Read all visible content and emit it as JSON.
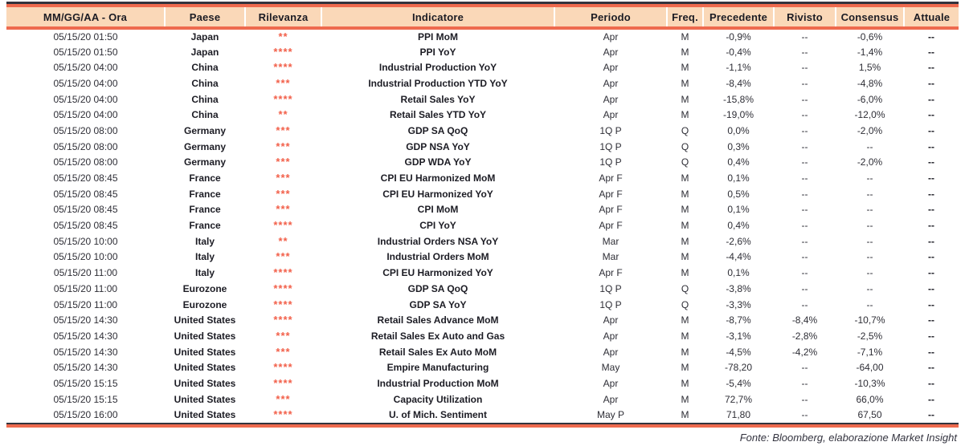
{
  "table": {
    "columns": [
      {
        "key": "datetime",
        "label": "MM/GG/AA - Ora"
      },
      {
        "key": "country",
        "label": "Paese"
      },
      {
        "key": "relevance",
        "label": "Rilevanza"
      },
      {
        "key": "indicator",
        "label": "Indicatore"
      },
      {
        "key": "period",
        "label": "Periodo"
      },
      {
        "key": "frequency",
        "label": "Freq."
      },
      {
        "key": "previous",
        "label": "Precedente"
      },
      {
        "key": "revised",
        "label": "Rivisto"
      },
      {
        "key": "consensus",
        "label": "Consensus"
      },
      {
        "key": "actual",
        "label": "Attuale"
      }
    ],
    "rows": [
      {
        "datetime": "05/15/20 01:50",
        "country": "Japan",
        "relevance": "**",
        "indicator": "PPI MoM",
        "period": "Apr",
        "frequency": "M",
        "previous": "-0,9%",
        "revised": "--",
        "consensus": "-0,6%",
        "actual": "--"
      },
      {
        "datetime": "05/15/20 01:50",
        "country": "Japan",
        "relevance": "****",
        "indicator": "PPI YoY",
        "period": "Apr",
        "frequency": "M",
        "previous": "-0,4%",
        "revised": "--",
        "consensus": "-1,4%",
        "actual": "--"
      },
      {
        "datetime": "05/15/20 04:00",
        "country": "China",
        "relevance": "****",
        "indicator": "Industrial Production YoY",
        "period": "Apr",
        "frequency": "M",
        "previous": "-1,1%",
        "revised": "--",
        "consensus": "1,5%",
        "actual": "--"
      },
      {
        "datetime": "05/15/20 04:00",
        "country": "China",
        "relevance": "***",
        "indicator": "Industrial Production YTD YoY",
        "period": "Apr",
        "frequency": "M",
        "previous": "-8,4%",
        "revised": "--",
        "consensus": "-4,8%",
        "actual": "--"
      },
      {
        "datetime": "05/15/20 04:00",
        "country": "China",
        "relevance": "****",
        "indicator": "Retail Sales YoY",
        "period": "Apr",
        "frequency": "M",
        "previous": "-15,8%",
        "revised": "--",
        "consensus": "-6,0%",
        "actual": "--"
      },
      {
        "datetime": "05/15/20 04:00",
        "country": "China",
        "relevance": "**",
        "indicator": "Retail Sales YTD YoY",
        "period": "Apr",
        "frequency": "M",
        "previous": "-19,0%",
        "revised": "--",
        "consensus": "-12,0%",
        "actual": "--"
      },
      {
        "datetime": "05/15/20 08:00",
        "country": "Germany",
        "relevance": "***",
        "indicator": "GDP SA QoQ",
        "period": "1Q P",
        "frequency": "Q",
        "previous": "0,0%",
        "revised": "--",
        "consensus": "-2,0%",
        "actual": "--"
      },
      {
        "datetime": "05/15/20 08:00",
        "country": "Germany",
        "relevance": "***",
        "indicator": "GDP NSA YoY",
        "period": "1Q P",
        "frequency": "Q",
        "previous": "0,3%",
        "revised": "--",
        "consensus": "--",
        "actual": "--"
      },
      {
        "datetime": "05/15/20 08:00",
        "country": "Germany",
        "relevance": "***",
        "indicator": "GDP WDA YoY",
        "period": "1Q P",
        "frequency": "Q",
        "previous": "0,4%",
        "revised": "--",
        "consensus": "-2,0%",
        "actual": "--"
      },
      {
        "datetime": "05/15/20 08:45",
        "country": "France",
        "relevance": "***",
        "indicator": "CPI EU Harmonized MoM",
        "period": "Apr F",
        "frequency": "M",
        "previous": "0,1%",
        "revised": "--",
        "consensus": "--",
        "actual": "--"
      },
      {
        "datetime": "05/15/20 08:45",
        "country": "France",
        "relevance": "***",
        "indicator": "CPI EU Harmonized YoY",
        "period": "Apr F",
        "frequency": "M",
        "previous": "0,5%",
        "revised": "--",
        "consensus": "--",
        "actual": "--"
      },
      {
        "datetime": "05/15/20 08:45",
        "country": "France",
        "relevance": "***",
        "indicator": "CPI MoM",
        "period": "Apr F",
        "frequency": "M",
        "previous": "0,1%",
        "revised": "--",
        "consensus": "--",
        "actual": "--"
      },
      {
        "datetime": "05/15/20 08:45",
        "country": "France",
        "relevance": "****",
        "indicator": "CPI YoY",
        "period": "Apr F",
        "frequency": "M",
        "previous": "0,4%",
        "revised": "--",
        "consensus": "--",
        "actual": "--"
      },
      {
        "datetime": "05/15/20 10:00",
        "country": "Italy",
        "relevance": "**",
        "indicator": "Industrial Orders NSA YoY",
        "period": "Mar",
        "frequency": "M",
        "previous": "-2,6%",
        "revised": "--",
        "consensus": "--",
        "actual": "--"
      },
      {
        "datetime": "05/15/20 10:00",
        "country": "Italy",
        "relevance": "***",
        "indicator": "Industrial Orders MoM",
        "period": "Mar",
        "frequency": "M",
        "previous": "-4,4%",
        "revised": "--",
        "consensus": "--",
        "actual": "--"
      },
      {
        "datetime": "05/15/20 11:00",
        "country": "Italy",
        "relevance": "****",
        "indicator": "CPI EU Harmonized YoY",
        "period": "Apr F",
        "frequency": "M",
        "previous": "0,1%",
        "revised": "--",
        "consensus": "--",
        "actual": "--"
      },
      {
        "datetime": "05/15/20 11:00",
        "country": "Eurozone",
        "relevance": "****",
        "indicator": "GDP SA QoQ",
        "period": "1Q P",
        "frequency": "Q",
        "previous": "-3,8%",
        "revised": "--",
        "consensus": "--",
        "actual": "--"
      },
      {
        "datetime": "05/15/20 11:00",
        "country": "Eurozone",
        "relevance": "****",
        "indicator": "GDP SA YoY",
        "period": "1Q P",
        "frequency": "Q",
        "previous": "-3,3%",
        "revised": "--",
        "consensus": "--",
        "actual": "--"
      },
      {
        "datetime": "05/15/20 14:30",
        "country": "United States",
        "relevance": "****",
        "indicator": "Retail Sales Advance MoM",
        "period": "Apr",
        "frequency": "M",
        "previous": "-8,7%",
        "revised": "-8,4%",
        "consensus": "-10,7%",
        "actual": "--"
      },
      {
        "datetime": "05/15/20 14:30",
        "country": "United States",
        "relevance": "***",
        "indicator": "Retail Sales Ex Auto and Gas",
        "period": "Apr",
        "frequency": "M",
        "previous": "-3,1%",
        "revised": "-2,8%",
        "consensus": "-2,5%",
        "actual": "--"
      },
      {
        "datetime": "05/15/20 14:30",
        "country": "United States",
        "relevance": "***",
        "indicator": "Retail Sales Ex Auto MoM",
        "period": "Apr",
        "frequency": "M",
        "previous": "-4,5%",
        "revised": "-4,2%",
        "consensus": "-7,1%",
        "actual": "--"
      },
      {
        "datetime": "05/15/20 14:30",
        "country": "United States",
        "relevance": "****",
        "indicator": "Empire Manufacturing",
        "period": "May",
        "frequency": "M",
        "previous": "-78,20",
        "revised": "--",
        "consensus": "-64,00",
        "actual": "--"
      },
      {
        "datetime": "05/15/20 15:15",
        "country": "United States",
        "relevance": "****",
        "indicator": "Industrial Production MoM",
        "period": "Apr",
        "frequency": "M",
        "previous": "-5,4%",
        "revised": "--",
        "consensus": "-10,3%",
        "actual": "--"
      },
      {
        "datetime": "05/15/20 15:15",
        "country": "United States",
        "relevance": "***",
        "indicator": "Capacity Utilization",
        "period": "Apr",
        "frequency": "M",
        "previous": "72,7%",
        "revised": "--",
        "consensus": "66,0%",
        "actual": "--"
      },
      {
        "datetime": "05/15/20 16:00",
        "country": "United States",
        "relevance": "****",
        "indicator": "U. of Mich. Sentiment",
        "period": "May P",
        "frequency": "M",
        "previous": "71,80",
        "revised": "--",
        "consensus": "67,50",
        "actual": "--"
      }
    ]
  },
  "footer": {
    "source": "Fonte: Bloomberg, elaborazione Market Insight"
  },
  "colors": {
    "header_bg": "#fad8b8",
    "accent_line": "#ee6a4e",
    "dark_line": "#33333d",
    "star": "#f2604a"
  }
}
